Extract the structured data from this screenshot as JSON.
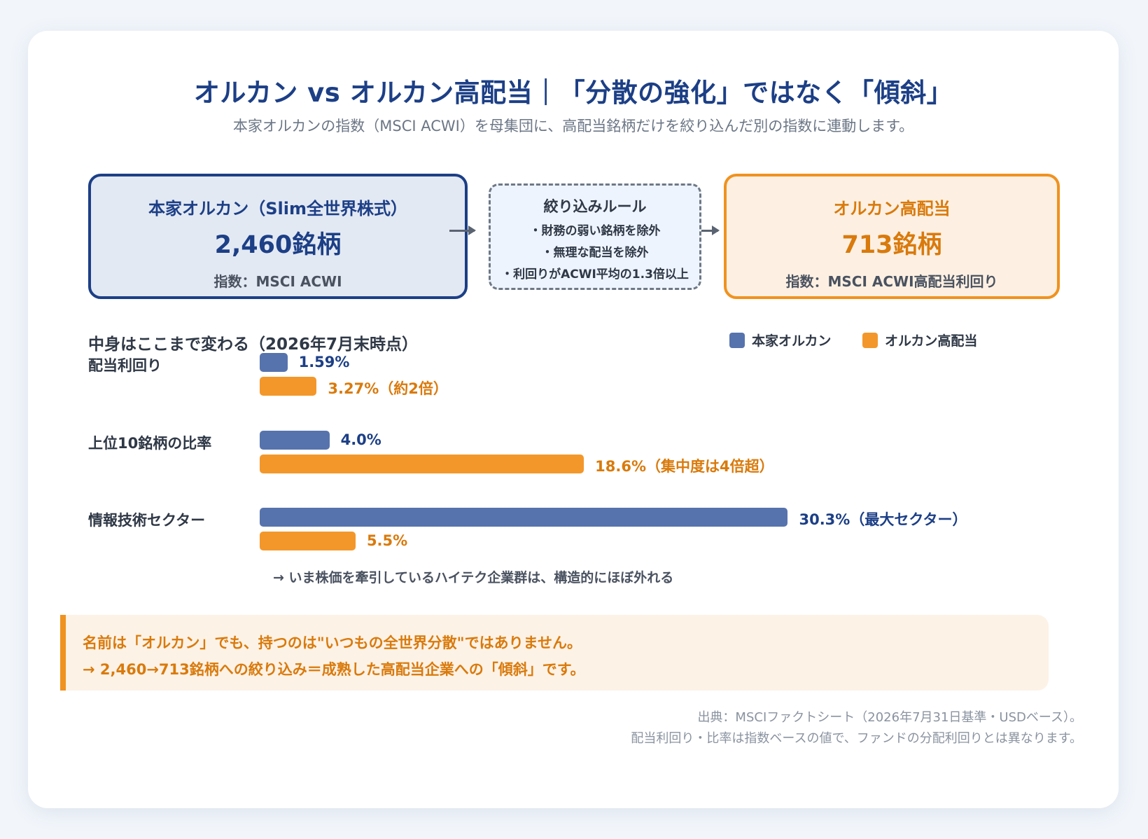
{
  "title": "オルカン vs オルカン高配当｜「分散の強化」ではなく「傾斜」",
  "subtitle": "本家オルカンの指数（MSCI ACWI）を母集団に、高配当銘柄だけを絞り込んだ別の指数に連動します。",
  "flow": {
    "left": {
      "title": "本家オルカン（Slim全世界株式）",
      "count": "2,460銘柄",
      "index": "指数：MSCI ACWI"
    },
    "middle": {
      "title": "絞り込みルール",
      "rules": [
        "・財務の弱い銘柄を除外",
        "・無理な配当を除外",
        "・利回りがACWI平均の1.3倍以上"
      ]
    },
    "right": {
      "title": "オルカン高配当",
      "count": "713銘柄",
      "index": "指数：MSCI ACWI高配当利回り"
    }
  },
  "colors": {
    "blue": "#5673ad",
    "orange": "#f3972a",
    "navy": "#1c3f86",
    "amber": "#d97a0c"
  },
  "chart_data": {
    "type": "bar",
    "title": "中身はここまで変わる（2026年7月末時点）",
    "orientation": "horizontal",
    "legend": "top-right",
    "categories": [
      "配当利回り",
      "上位10銘柄の比率",
      "情報技術セクター"
    ],
    "series": [
      {
        "name": "本家オルカン",
        "values": [
          1.59,
          4.0,
          30.3
        ],
        "labels": [
          "1.59%",
          "4.0%",
          "30.3%（最大セクター）"
        ]
      },
      {
        "name": "オルカン高配当",
        "values": [
          3.27,
          18.6,
          5.5
        ],
        "labels": [
          "3.27%（約2倍）",
          "18.6%（集中度は4倍超）",
          "5.5%"
        ]
      }
    ],
    "note": "→ いま株価を牽引しているハイテク企業群は、構造的にほぼ外れる"
  },
  "callout": {
    "line1": "名前は「オルカン」でも、持つのは\"いつもの全世界分散\"ではありません。",
    "line2": "→ 2,460→713銘柄への絞り込み＝成熟した高配当企業への「傾斜」です。"
  },
  "source": {
    "line1": "出典：MSCIファクトシート（2026年7月31日基準・USDベース）。",
    "line2": "配当利回り・比率は指数ベースの値で、ファンドの分配利回りとは異なります。"
  }
}
